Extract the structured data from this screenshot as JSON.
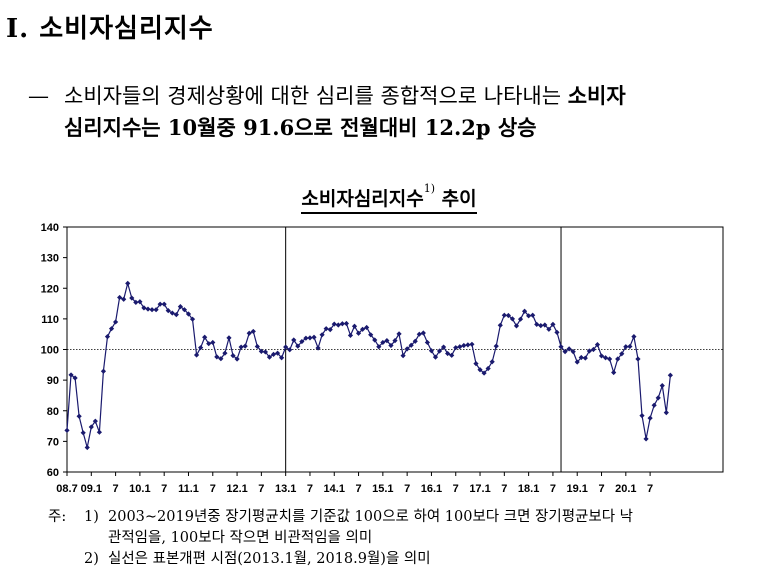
{
  "section": {
    "title": "Ⅰ. 소비자심리지수"
  },
  "summary": {
    "dash": "—",
    "line1_text": "소비자들의 경제상황에 대한 심리를 종합적으로 나타내는 ",
    "line1_bold": "소비자",
    "line2": "심리지수는 10월중 91.6으로 전월대비 12.2p 상승"
  },
  "chart_title": {
    "main": "소비자심리지수",
    "sup": "1)",
    "suffix": " 추이"
  },
  "notes": {
    "lead": "주:",
    "n1_num": "1)",
    "n1_text": "2003∼2019년중 장기평균치를 기준값 100으로 하여 100보다 크면 장기평균보다 낙",
    "n1_cont": "관적임을, 100보다 작으면 비관적임을 의미",
    "n2_num": "2)",
    "n2_text": "실선은 표본개편 시점(2013.1월, 2018.9월)을 의미"
  },
  "chart_data": {
    "type": "line",
    "title": "소비자심리지수 추이",
    "ylim": [
      60,
      140
    ],
    "yticks": [
      60,
      70,
      80,
      90,
      100,
      110,
      120,
      130,
      140
    ],
    "xlim": [
      0,
      162
    ],
    "xticks": [
      {
        "i": 0,
        "label": "08.7"
      },
      {
        "i": 6,
        "label": "09.1"
      },
      {
        "i": 12,
        "label": "7"
      },
      {
        "i": 18,
        "label": "10.1"
      },
      {
        "i": 24,
        "label": "7"
      },
      {
        "i": 30,
        "label": "11.1"
      },
      {
        "i": 36,
        "label": "7"
      },
      {
        "i": 42,
        "label": "12.1"
      },
      {
        "i": 48,
        "label": "7"
      },
      {
        "i": 54,
        "label": "13.1"
      },
      {
        "i": 60,
        "label": "7"
      },
      {
        "i": 66,
        "label": "14.1"
      },
      {
        "i": 72,
        "label": "7"
      },
      {
        "i": 78,
        "label": "15.1"
      },
      {
        "i": 84,
        "label": "7"
      },
      {
        "i": 90,
        "label": "16.1"
      },
      {
        "i": 96,
        "label": "7"
      },
      {
        "i": 102,
        "label": "17.1"
      },
      {
        "i": 108,
        "label": "7"
      },
      {
        "i": 114,
        "label": "18.1"
      },
      {
        "i": 120,
        "label": "7"
      },
      {
        "i": 126,
        "label": "19.1"
      },
      {
        "i": 132,
        "label": "7"
      },
      {
        "i": 138,
        "label": "20.1"
      },
      {
        "i": 144,
        "label": "7"
      }
    ],
    "reference_line": 100,
    "vertical_lines": [
      54,
      122
    ],
    "series": [
      {
        "color": "#1a1a6e",
        "values": [
          73.6,
          91.7,
          90.7,
          78.2,
          72.8,
          68.0,
          74.7,
          76.6,
          73.0,
          92.9,
          104.2,
          106.8,
          109.0,
          117.0,
          116.4,
          121.6,
          116.8,
          115.4,
          115.6,
          113.6,
          113.2,
          113.0,
          113.0,
          114.8,
          114.8,
          112.7,
          111.9,
          111.4,
          114.0,
          113.0,
          111.6,
          109.9,
          98.2,
          100.6,
          104.0,
          101.9,
          102.3,
          97.6,
          97.0,
          98.8,
          103.8,
          98.0,
          96.9,
          100.8,
          101.1,
          105.3,
          105.9,
          101.0,
          99.4,
          99.2,
          97.5,
          98.4,
          98.8,
          97.3,
          100.8,
          99.9,
          103.1,
          101.1,
          102.6,
          103.7,
          103.8,
          104.0,
          100.5,
          104.8,
          106.8,
          106.5,
          108.3,
          108.0,
          108.4,
          108.5,
          104.6,
          107.6,
          105.3,
          106.6,
          107.2,
          104.8,
          103.1,
          100.9,
          102.3,
          102.9,
          101.3,
          102.9,
          105.1,
          98.0,
          100.2,
          101.4,
          102.7,
          105.0,
          105.4,
          102.3,
          99.6,
          97.5,
          99.5,
          100.8,
          98.7,
          98.1,
          100.6,
          100.9,
          101.3,
          101.5,
          101.7,
          95.4,
          93.4,
          92.3,
          93.8,
          96.0,
          101.1,
          107.9,
          111.2,
          111.1,
          110.0,
          107.7,
          109.9,
          112.5,
          111.0,
          111.2,
          108.2,
          107.8,
          108.0,
          106.6,
          108.2,
          105.6,
          100.9,
          99.3,
          100.2,
          99.3,
          95.9,
          97.4,
          97.2,
          99.5,
          100.0,
          101.6,
          97.9,
          97.3,
          96.9,
          92.5,
          96.9,
          98.6,
          100.9,
          101.0,
          104.2,
          96.9,
          78.4,
          70.8,
          77.6,
          81.8,
          84.2,
          88.2,
          79.4,
          91.6
        ]
      }
    ]
  }
}
